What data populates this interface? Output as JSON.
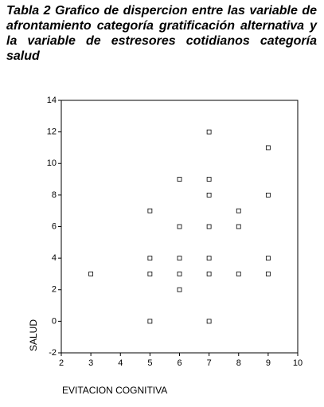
{
  "chart_data": {
    "type": "scatter",
    "title": "Tabla 2  Grafico de dispercion entre las variable de afrontamiento categoría gratificación alternativa y la variable de estresores cotidianos categoría salud",
    "x_label": "EVITACION COGNITIVA",
    "y_label": "SALUD",
    "x": [
      3,
      5,
      5,
      5,
      5,
      6,
      6,
      6,
      6,
      6,
      7,
      7,
      7,
      7,
      7,
      7,
      7,
      8,
      8,
      8,
      9,
      9,
      9,
      9
    ],
    "y": [
      3,
      7,
      4,
      3,
      0,
      9,
      6,
      4,
      3,
      2,
      12,
      9,
      8,
      6,
      4,
      3,
      0,
      7,
      6,
      3,
      11,
      8,
      4,
      3
    ],
    "color": "#000000",
    "xlim": [
      2,
      10
    ],
    "xticks": [
      2,
      3,
      4,
      5,
      6,
      7,
      8,
      9,
      10
    ],
    "ylim": [
      -2,
      14
    ],
    "yticks": [
      -2,
      0,
      2,
      4,
      6,
      8,
      10,
      12,
      14
    ]
  }
}
